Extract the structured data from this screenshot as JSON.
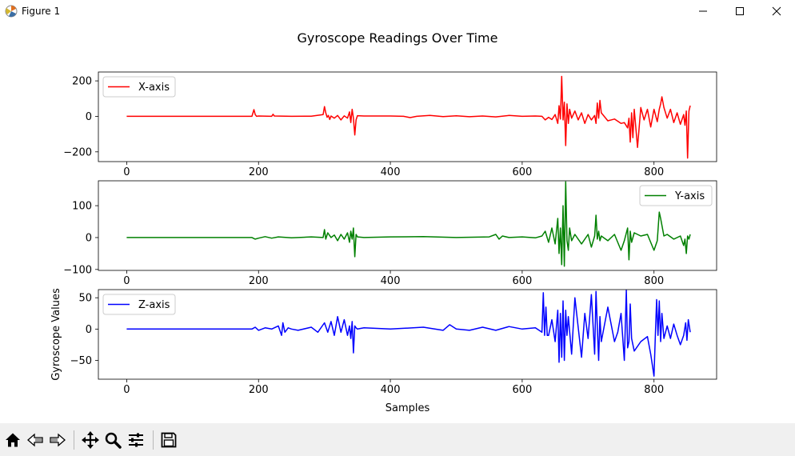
{
  "window": {
    "title": "Figure 1",
    "buttons": [
      "minimize",
      "maximize",
      "close"
    ]
  },
  "toolbar": {
    "icons": [
      "home-icon",
      "back-icon",
      "forward-icon",
      "pan-icon",
      "zoom-icon",
      "configure-subplots-icon",
      "save-icon"
    ]
  },
  "chart_data": [
    {
      "type": "line",
      "title": "Gyroscope Readings Over Time",
      "xlabel": "",
      "ylabel": "",
      "xlim": [
        -43,
        895
      ],
      "ylim": [
        -255,
        250
      ],
      "xticks": [
        0,
        200,
        400,
        600,
        800
      ],
      "yticks": [
        -200,
        0,
        200
      ],
      "legend": "top-left",
      "grid": false,
      "series": [
        {
          "name": "X-axis",
          "color": "#ff0000",
          "x": [
            0,
            100,
            190,
            193,
            195,
            197,
            200,
            220,
            222,
            224,
            250,
            280,
            298,
            300,
            302,
            304,
            306,
            308,
            310,
            315,
            320,
            325,
            330,
            335,
            338,
            340,
            342,
            344,
            346,
            348,
            350,
            360,
            400,
            420,
            430,
            440,
            460,
            480,
            500,
            520,
            540,
            560,
            580,
            600,
            620,
            630,
            635,
            640,
            645,
            650,
            654,
            656,
            658,
            660,
            662,
            664,
            666,
            668,
            670,
            672,
            675,
            680,
            685,
            690,
            695,
            700,
            705,
            710,
            712,
            714,
            716,
            718,
            720,
            730,
            740,
            750,
            755,
            760,
            762,
            764,
            766,
            768,
            770,
            775,
            780,
            785,
            790,
            795,
            800,
            805,
            808,
            810,
            812,
            815,
            820,
            825,
            830,
            835,
            840,
            845,
            847,
            849,
            851,
            853,
            855
          ],
          "values": [
            0,
            0,
            0,
            38,
            10,
            0,
            2,
            0,
            12,
            2,
            0,
            1,
            10,
            55,
            20,
            -5,
            5,
            -18,
            2,
            -10,
            5,
            -20,
            3,
            -10,
            25,
            -35,
            40,
            -10,
            -105,
            -20,
            4,
            2,
            2,
            0,
            -7,
            0,
            5,
            -1,
            3,
            -2,
            2,
            -3,
            5,
            0,
            2,
            0,
            -20,
            -5,
            -18,
            10,
            -40,
            60,
            -15,
            225,
            -20,
            80,
            -165,
            70,
            -40,
            40,
            -10,
            30,
            -20,
            20,
            -40,
            10,
            -20,
            5,
            -40,
            75,
            -10,
            90,
            20,
            -25,
            -15,
            -40,
            -35,
            -65,
            -10,
            -145,
            20,
            -120,
            40,
            -175,
            50,
            -20,
            40,
            -60,
            40,
            -30,
            40,
            70,
            110,
            50,
            -10,
            40,
            -35,
            20,
            -45,
            10,
            -50,
            30,
            -235,
            30,
            60
          ]
        }
      ]
    },
    {
      "type": "line",
      "title": "",
      "xlabel": "",
      "ylabel": "",
      "xlim": [
        -43,
        895
      ],
      "ylim": [
        -103,
        178
      ],
      "xticks": [
        0,
        200,
        400,
        600,
        800
      ],
      "yticks": [
        -100,
        0,
        100
      ],
      "legend": "top-right",
      "grid": false,
      "series": [
        {
          "name": "Y-axis",
          "color": "#008000",
          "x": [
            0,
            100,
            190,
            195,
            200,
            210,
            220,
            230,
            250,
            280,
            298,
            300,
            302,
            305,
            310,
            315,
            320,
            325,
            330,
            335,
            338,
            340,
            342,
            344,
            346,
            348,
            350,
            360,
            400,
            450,
            500,
            550,
            560,
            565,
            570,
            580,
            600,
            620,
            630,
            635,
            640,
            645,
            650,
            654,
            656,
            658,
            660,
            662,
            664,
            666,
            668,
            670,
            672,
            675,
            680,
            690,
            700,
            705,
            710,
            712,
            714,
            716,
            718,
            720,
            730,
            740,
            750,
            755,
            760,
            762,
            764,
            766,
            770,
            780,
            790,
            800,
            805,
            808,
            810,
            815,
            820,
            830,
            840,
            845,
            847,
            849,
            851,
            853,
            855
          ],
          "values": [
            0,
            0,
            0,
            -5,
            -2,
            3,
            -2,
            2,
            -1,
            2,
            0,
            25,
            -5,
            15,
            0,
            8,
            -10,
            10,
            -5,
            15,
            -15,
            20,
            -5,
            30,
            -60,
            10,
            2,
            0,
            2,
            3,
            0,
            2,
            10,
            -5,
            5,
            0,
            2,
            -1,
            5,
            20,
            -15,
            30,
            -20,
            60,
            -50,
            30,
            -85,
            100,
            -90,
            175,
            -10,
            -40,
            30,
            -10,
            10,
            -20,
            10,
            -30,
            5,
            70,
            -5,
            20,
            -10,
            5,
            -10,
            10,
            -40,
            -10,
            30,
            -70,
            20,
            -15,
            15,
            5,
            10,
            -40,
            -10,
            80,
            60,
            5,
            10,
            -5,
            5,
            -25,
            -5,
            -50,
            5,
            -5,
            10
          ]
        }
      ]
    },
    {
      "type": "line",
      "title": "",
      "xlabel": "Samples",
      "ylabel": "Gyroscope Values",
      "xlim": [
        -43,
        895
      ],
      "ylim": [
        -80,
        63
      ],
      "xticks": [
        0,
        200,
        400,
        600,
        800
      ],
      "yticks": [
        -50,
        0,
        50
      ],
      "legend": "top-left",
      "grid": false,
      "series": [
        {
          "name": "Z-axis",
          "color": "#0000ff",
          "x": [
            0,
            100,
            190,
            195,
            200,
            210,
            220,
            230,
            235,
            237,
            240,
            245,
            250,
            260,
            280,
            290,
            300,
            305,
            310,
            315,
            320,
            325,
            330,
            335,
            338,
            340,
            342,
            344,
            346,
            348,
            350,
            360,
            400,
            450,
            480,
            490,
            500,
            520,
            540,
            560,
            580,
            600,
            620,
            630,
            632,
            634,
            636,
            638,
            640,
            645,
            650,
            654,
            656,
            658,
            660,
            662,
            664,
            666,
            668,
            670,
            675,
            680,
            690,
            695,
            700,
            705,
            710,
            712,
            714,
            716,
            718,
            720,
            730,
            740,
            745,
            750,
            755,
            758,
            760,
            762,
            764,
            766,
            770,
            780,
            790,
            795,
            800,
            802,
            804,
            806,
            808,
            810,
            812,
            815,
            820,
            825,
            830,
            835,
            840,
            845,
            848,
            850,
            852,
            855
          ],
          "values": [
            0,
            0,
            0,
            3,
            -2,
            2,
            0,
            5,
            -10,
            10,
            -5,
            2,
            0,
            -2,
            3,
            -5,
            10,
            -5,
            12,
            -10,
            20,
            -5,
            15,
            -10,
            5,
            -15,
            12,
            -38,
            5,
            2,
            0,
            2,
            0,
            3,
            -2,
            7,
            0,
            -2,
            3,
            -2,
            4,
            0,
            2,
            -5,
            58,
            -10,
            35,
            -10,
            -10,
            15,
            -20,
            30,
            -53,
            25,
            -45,
            45,
            -50,
            30,
            -10,
            20,
            -40,
            50,
            -45,
            25,
            -15,
            55,
            -40,
            60,
            5,
            -50,
            20,
            -20,
            35,
            -20,
            -5,
            25,
            -50,
            62,
            -30,
            -20,
            40,
            -15,
            -35,
            -20,
            -12,
            -40,
            -75,
            -10,
            47,
            -10,
            45,
            -20,
            25,
            -15,
            5,
            -15,
            8,
            -10,
            -25,
            -10,
            10,
            -18,
            15,
            -5
          ]
        }
      ]
    }
  ]
}
